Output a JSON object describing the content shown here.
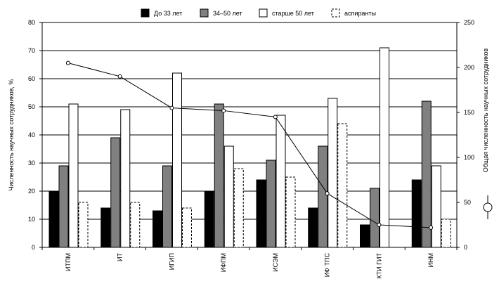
{
  "chart_data": {
    "type": "bar",
    "categories": [
      "ИТПМ",
      "ИТ",
      "ИГИП",
      "ИФПМ",
      "ИСЭМ",
      "ИФ ТПС",
      "КТИ ГИТ",
      "ИНМ"
    ],
    "series": [
      {
        "name": "До 33 лет",
        "kind": "bar",
        "axis": "left",
        "color": "#000000",
        "values": [
          20,
          14,
          13,
          20,
          24,
          14,
          8,
          24
        ]
      },
      {
        "name": "34–50 лет",
        "kind": "bar",
        "axis": "left",
        "color": "#808080",
        "values": [
          29,
          39,
          29,
          51,
          31,
          36,
          21,
          52
        ]
      },
      {
        "name": "старше 50 лет",
        "kind": "bar",
        "axis": "left",
        "color": "#ffffff",
        "values": [
          51,
          49,
          62,
          36,
          47,
          53,
          71,
          29
        ]
      },
      {
        "name": "аспиранты",
        "kind": "bar",
        "axis": "left",
        "color": "#ffffff",
        "dashed": true,
        "values": [
          16,
          16,
          14,
          28,
          25,
          44,
          0,
          10
        ]
      },
      {
        "name": "",
        "kind": "line",
        "axis": "right",
        "marker": "circle",
        "values": [
          205,
          190,
          155,
          152,
          145,
          60,
          25,
          22
        ]
      }
    ],
    "ylabel": "Численность научных сотрудников, %",
    "y2label": "Общая численность научных сотрудников",
    "ylim": [
      0,
      80
    ],
    "y2lim": [
      0,
      250
    ],
    "yticks": [
      0,
      10,
      20,
      30,
      40,
      50,
      60,
      70,
      80
    ],
    "y2ticks": [
      0,
      50,
      100,
      150,
      200,
      250
    ],
    "grid": true,
    "legend": "top"
  }
}
